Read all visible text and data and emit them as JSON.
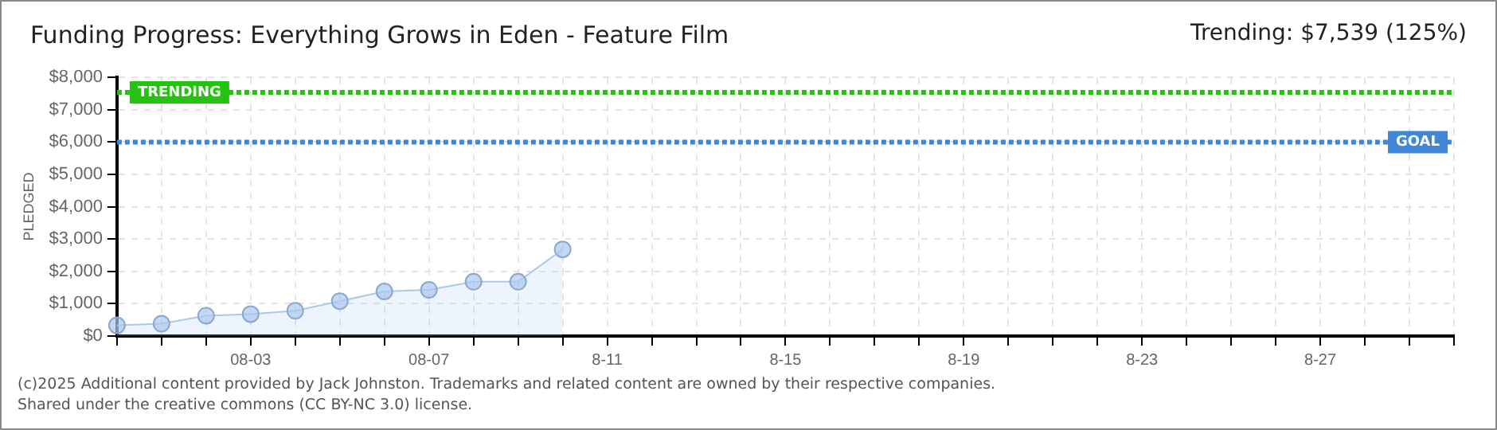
{
  "chart_data": {
    "type": "area",
    "title": "Funding Progress: Everything Grows in Eden - Feature Film",
    "ylabel": "PLEDGED",
    "categories": [
      null,
      null,
      null,
      "08-03",
      null,
      null,
      null,
      "08-07",
      null,
      null,
      null,
      "8-11",
      null,
      null,
      null,
      "8-15",
      null,
      null,
      null,
      "8-19",
      null,
      null,
      null,
      "8-23",
      null,
      null,
      null,
      "8-27",
      null,
      null,
      null
    ],
    "series": [
      {
        "color": "#a9c8ec",
        "values": [
          330,
          380,
          630,
          680,
          780,
          1080,
          1380,
          1430,
          1680,
          1680,
          2680,
          null,
          null,
          null,
          null,
          null,
          null,
          null,
          null,
          null,
          null,
          null,
          null,
          null,
          null,
          null,
          null,
          null,
          null,
          null,
          null
        ]
      }
    ],
    "ylim": [
      0,
      8000
    ],
    "yticks": [
      {
        "value": 0,
        "label": "$0"
      },
      {
        "value": 1000,
        "label": "$1,000"
      },
      {
        "value": 2000,
        "label": "$2,000"
      },
      {
        "value": 3000,
        "label": "$3,000"
      },
      {
        "value": 4000,
        "label": "$4,000"
      },
      {
        "value": 5000,
        "label": "$5,000"
      },
      {
        "value": 6000,
        "label": "$6,000"
      },
      {
        "value": 7000,
        "label": "$7,000"
      },
      {
        "value": 8000,
        "label": "$8,000"
      }
    ],
    "ref_lines": [
      {
        "axis": "y",
        "value": 7539,
        "label": "TRENDING",
        "color": "#22c40f",
        "line_style": "dotted"
      },
      {
        "axis": "y",
        "value": 6000,
        "label": "GOAL",
        "color": "#3f87d6",
        "line_style": "dotted"
      }
    ],
    "annotations": [
      "Trending: $7,539 (125%)",
      "(c)2025 Additional content provided by Jack Johnston. Trademarks and related content are owned by their respective companies.",
      "Shared under the creative commons (CC BY-NC 3.0) license."
    ],
    "grid": true,
    "marker": "circle",
    "legend": false
  }
}
